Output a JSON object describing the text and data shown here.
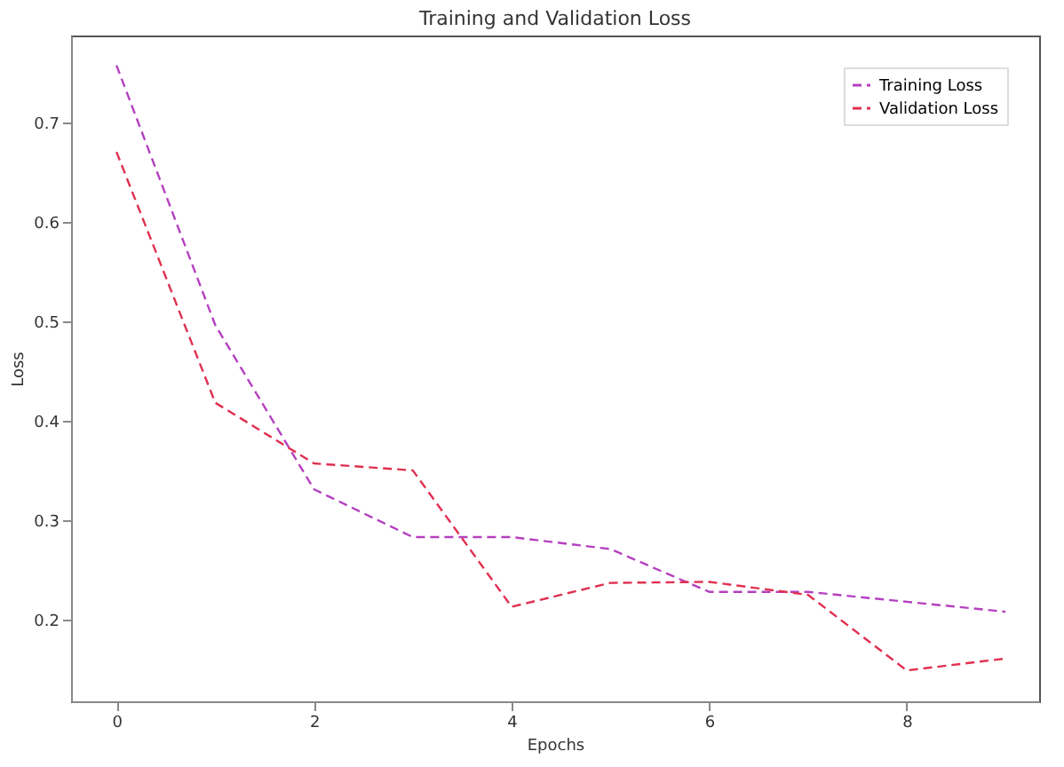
{
  "chart_data": {
    "type": "line",
    "title": "Training and Validation Loss",
    "xlabel": "Epochs",
    "ylabel": "Loss",
    "x": [
      0,
      1,
      2,
      3,
      4,
      5,
      6,
      7,
      8,
      9
    ],
    "series": [
      {
        "name": "Training Loss",
        "color": "#b540c0",
        "values": [
          0.757,
          0.496,
          0.331,
          0.283,
          0.283,
          0.271,
          0.228,
          0.228,
          0.218,
          0.208
        ]
      },
      {
        "name": "Validation Loss",
        "color": "#e03050",
        "values": [
          0.67,
          0.418,
          0.357,
          0.35,
          0.213,
          0.237,
          0.238,
          0.225,
          0.149,
          0.161
        ]
      }
    ],
    "xlim": [
      -0.46,
      9.34
    ],
    "ylim": [
      0.118,
      0.787
    ],
    "xticks": [
      0,
      2,
      4,
      6,
      8
    ],
    "yticks": [
      0.2,
      0.3,
      0.4,
      0.5,
      0.6,
      0.7
    ],
    "grid": false,
    "legend": "top right",
    "line_style": "dashed",
    "marker": "none"
  }
}
